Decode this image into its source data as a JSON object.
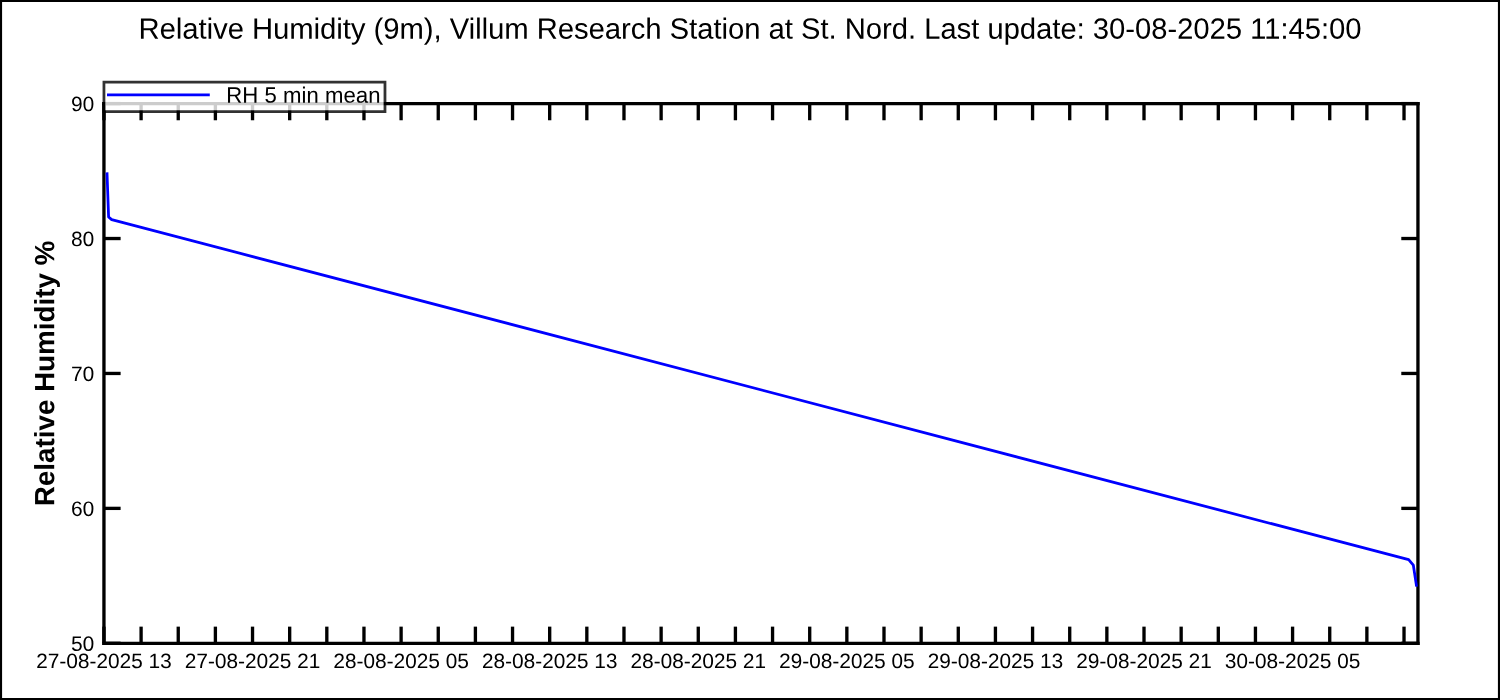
{
  "chart_data": {
    "type": "line",
    "title": "Relative Humidity (9m), Villum Research Station at St. Nord. Last update: 30-08-2025 11:45:00",
    "ylabel": "Relative Humidity %",
    "x": [
      "2025-08-27T13:10",
      "2025-08-27T13:15",
      "2025-08-27T13:25",
      "2025-08-30T11:15",
      "2025-08-30T11:30",
      "2025-08-30T11:40"
    ],
    "series": [
      {
        "name": "RH 5 min mean",
        "color": "#0000ff",
        "values": [
          84.8,
          81.6,
          81.4,
          56.2,
          55.8,
          54.3
        ]
      }
    ],
    "xlim": [
      "2025-08-27T13:00",
      "2025-08-30T11:45"
    ],
    "xticks": [
      {
        "value": "2025-08-27T13:00",
        "label": "27-08-2025 13"
      },
      {
        "value": "2025-08-27T15:00",
        "label": null
      },
      {
        "value": "2025-08-27T17:00",
        "label": null
      },
      {
        "value": "2025-08-27T19:00",
        "label": null
      },
      {
        "value": "2025-08-27T21:00",
        "label": "27-08-2025 21"
      },
      {
        "value": "2025-08-27T23:00",
        "label": null
      },
      {
        "value": "2025-08-28T01:00",
        "label": null
      },
      {
        "value": "2025-08-28T03:00",
        "label": null
      },
      {
        "value": "2025-08-28T05:00",
        "label": "28-08-2025 05"
      },
      {
        "value": "2025-08-28T07:00",
        "label": null
      },
      {
        "value": "2025-08-28T09:00",
        "label": null
      },
      {
        "value": "2025-08-28T11:00",
        "label": null
      },
      {
        "value": "2025-08-28T13:00",
        "label": "28-08-2025 13"
      },
      {
        "value": "2025-08-28T15:00",
        "label": null
      },
      {
        "value": "2025-08-28T17:00",
        "label": null
      },
      {
        "value": "2025-08-28T19:00",
        "label": null
      },
      {
        "value": "2025-08-28T21:00",
        "label": "28-08-2025 21"
      },
      {
        "value": "2025-08-28T23:00",
        "label": null
      },
      {
        "value": "2025-08-29T01:00",
        "label": null
      },
      {
        "value": "2025-08-29T03:00",
        "label": null
      },
      {
        "value": "2025-08-29T05:00",
        "label": "29-08-2025 05"
      },
      {
        "value": "2025-08-29T07:00",
        "label": null
      },
      {
        "value": "2025-08-29T09:00",
        "label": null
      },
      {
        "value": "2025-08-29T11:00",
        "label": null
      },
      {
        "value": "2025-08-29T13:00",
        "label": "29-08-2025 13"
      },
      {
        "value": "2025-08-29T15:00",
        "label": null
      },
      {
        "value": "2025-08-29T17:00",
        "label": null
      },
      {
        "value": "2025-08-29T19:00",
        "label": null
      },
      {
        "value": "2025-08-29T21:00",
        "label": "29-08-2025 21"
      },
      {
        "value": "2025-08-29T23:00",
        "label": null
      },
      {
        "value": "2025-08-30T01:00",
        "label": null
      },
      {
        "value": "2025-08-30T03:00",
        "label": null
      },
      {
        "value": "2025-08-30T05:00",
        "label": "30-08-2025 05"
      },
      {
        "value": "2025-08-30T07:00",
        "label": null
      },
      {
        "value": "2025-08-30T09:00",
        "label": null
      },
      {
        "value": "2025-08-30T11:00",
        "label": null
      }
    ],
    "ylim": [
      50,
      90
    ],
    "yticks": [
      50,
      60,
      70,
      80,
      90
    ],
    "grid": false,
    "legend": "top left",
    "marker": "none",
    "line_style": "solid"
  }
}
